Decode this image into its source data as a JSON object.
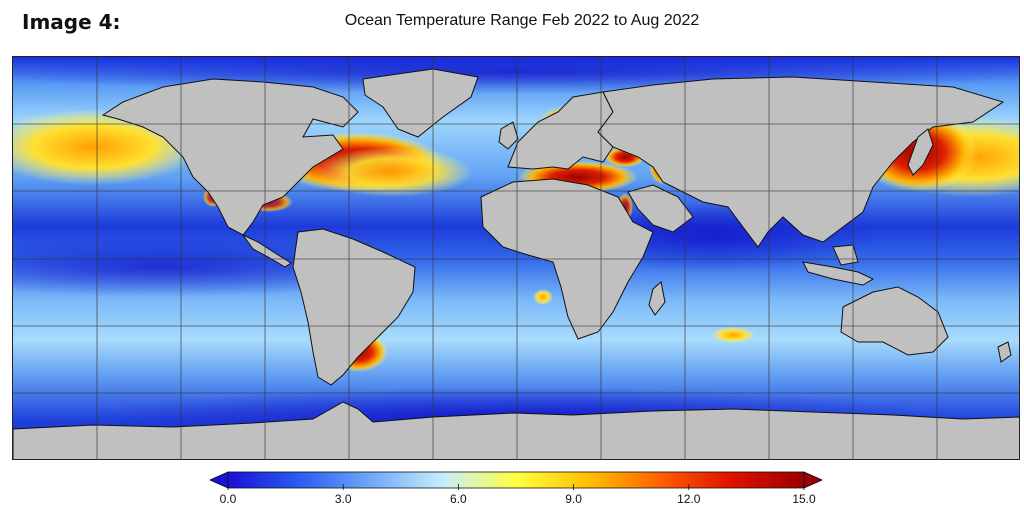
{
  "image_label": "Image 4:",
  "title": "Ocean Temperature Range Feb 2022 to Aug 2022",
  "colorbar": {
    "min": 0.0,
    "max": 15.0,
    "ticks": [
      "0.0",
      "3.0",
      "6.0",
      "9.0",
      "12.0",
      "15.0"
    ],
    "tick_values": [
      0,
      3,
      6,
      9,
      12,
      15
    ],
    "colors": [
      "#1a10d8",
      "#2a5ef0",
      "#6fa8f8",
      "#c8eefc",
      "#ffff40",
      "#ffc000",
      "#ff6000",
      "#e01000",
      "#9a0000"
    ]
  },
  "colors": {
    "land": "#c0c0c0",
    "grid": "#333333",
    "ocean_cold": "#1830e0",
    "ocean_mid": "#6fb0f8",
    "ocean_warm": "#ffd000",
    "ocean_hot": "#b00000"
  }
}
